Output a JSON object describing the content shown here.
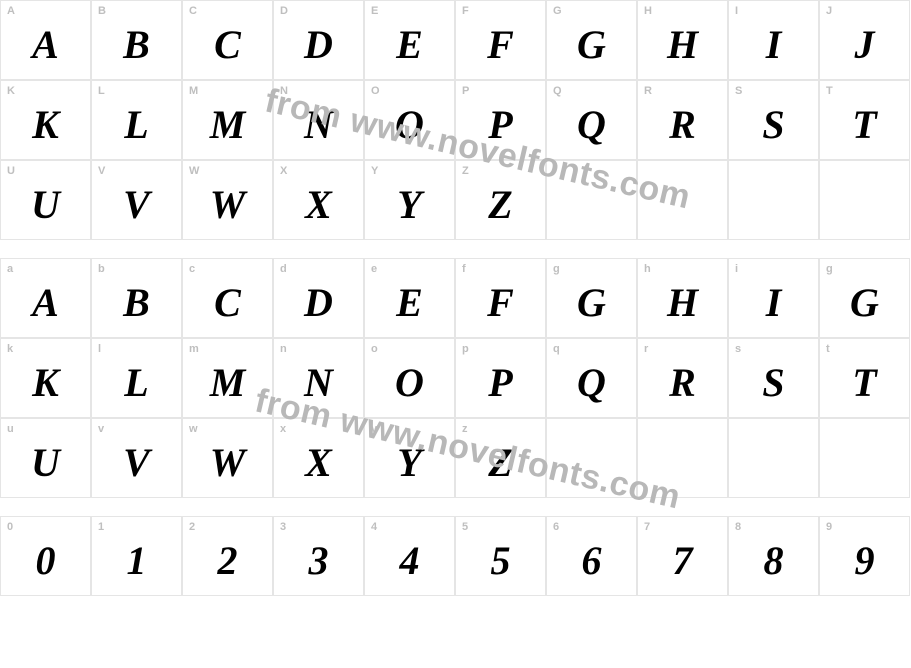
{
  "watermark_text": "from www.novelfonts.com",
  "watermark_color": "#b8b8b8",
  "border_color": "#e5e5e5",
  "label_color": "#bfbfbf",
  "glyph_color": "#000000",
  "background_color": "#ffffff",
  "label_fontsize": 11,
  "glyph_fontsize": 40,
  "uppercase": {
    "row1": [
      {
        "label": "A",
        "glyph": "A"
      },
      {
        "label": "B",
        "glyph": "B"
      },
      {
        "label": "C",
        "glyph": "C"
      },
      {
        "label": "D",
        "glyph": "D"
      },
      {
        "label": "E",
        "glyph": "E"
      },
      {
        "label": "F",
        "glyph": "F"
      },
      {
        "label": "G",
        "glyph": "G"
      },
      {
        "label": "H",
        "glyph": "H"
      },
      {
        "label": "I",
        "glyph": "I"
      },
      {
        "label": "J",
        "glyph": "J"
      }
    ],
    "row2": [
      {
        "label": "K",
        "glyph": "K"
      },
      {
        "label": "L",
        "glyph": "L"
      },
      {
        "label": "M",
        "glyph": "M"
      },
      {
        "label": "N",
        "glyph": "N"
      },
      {
        "label": "O",
        "glyph": "O"
      },
      {
        "label": "P",
        "glyph": "P"
      },
      {
        "label": "Q",
        "glyph": "Q"
      },
      {
        "label": "R",
        "glyph": "R"
      },
      {
        "label": "S",
        "glyph": "S"
      },
      {
        "label": "T",
        "glyph": "T"
      }
    ],
    "row3": [
      {
        "label": "U",
        "glyph": "U"
      },
      {
        "label": "V",
        "glyph": "V"
      },
      {
        "label": "W",
        "glyph": "W"
      },
      {
        "label": "X",
        "glyph": "X"
      },
      {
        "label": "Y",
        "glyph": "Y"
      },
      {
        "label": "Z",
        "glyph": "Z"
      },
      {
        "label": "",
        "glyph": ""
      },
      {
        "label": "",
        "glyph": ""
      },
      {
        "label": "",
        "glyph": ""
      },
      {
        "label": "",
        "glyph": ""
      }
    ]
  },
  "lowercase": {
    "row1": [
      {
        "label": "a",
        "glyph": "A"
      },
      {
        "label": "b",
        "glyph": "B"
      },
      {
        "label": "c",
        "glyph": "C"
      },
      {
        "label": "d",
        "glyph": "D"
      },
      {
        "label": "e",
        "glyph": "E"
      },
      {
        "label": "f",
        "glyph": "F"
      },
      {
        "label": "g",
        "glyph": "G"
      },
      {
        "label": "h",
        "glyph": "H"
      },
      {
        "label": "i",
        "glyph": "I"
      },
      {
        "label": "g",
        "glyph": "G"
      }
    ],
    "row2": [
      {
        "label": "k",
        "glyph": "K"
      },
      {
        "label": "l",
        "glyph": "L"
      },
      {
        "label": "m",
        "glyph": "M"
      },
      {
        "label": "n",
        "glyph": "N"
      },
      {
        "label": "o",
        "glyph": "O"
      },
      {
        "label": "p",
        "glyph": "P"
      },
      {
        "label": "q",
        "glyph": "Q"
      },
      {
        "label": "r",
        "glyph": "R"
      },
      {
        "label": "s",
        "glyph": "S"
      },
      {
        "label": "t",
        "glyph": "T"
      }
    ],
    "row3": [
      {
        "label": "u",
        "glyph": "U"
      },
      {
        "label": "v",
        "glyph": "V"
      },
      {
        "label": "w",
        "glyph": "W"
      },
      {
        "label": "x",
        "glyph": "X"
      },
      {
        "label": "y",
        "glyph": "Y"
      },
      {
        "label": "z",
        "glyph": "Z"
      },
      {
        "label": "",
        "glyph": ""
      },
      {
        "label": "",
        "glyph": ""
      },
      {
        "label": "",
        "glyph": ""
      },
      {
        "label": "",
        "glyph": ""
      }
    ]
  },
  "digits": {
    "row1": [
      {
        "label": "0",
        "glyph": "0"
      },
      {
        "label": "1",
        "glyph": "1"
      },
      {
        "label": "2",
        "glyph": "2"
      },
      {
        "label": "3",
        "glyph": "3"
      },
      {
        "label": "4",
        "glyph": "4"
      },
      {
        "label": "5",
        "glyph": "5"
      },
      {
        "label": "6",
        "glyph": "6"
      },
      {
        "label": "7",
        "glyph": "7"
      },
      {
        "label": "8",
        "glyph": "8"
      },
      {
        "label": "9",
        "glyph": "9"
      }
    ]
  }
}
